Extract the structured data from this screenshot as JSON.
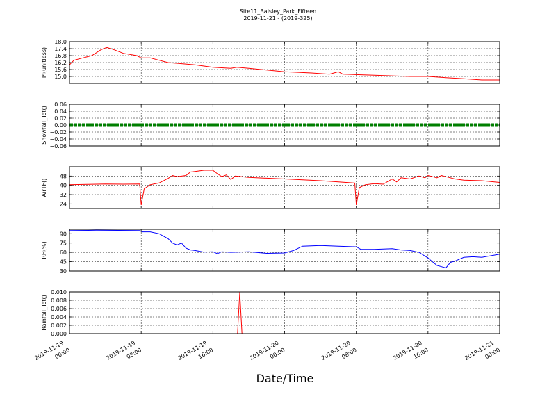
{
  "title_line1": "Site11_Baisley_Park_Fifteen",
  "title_line2": "2019-11-21 - (2019-325)",
  "xlabel": "Date/Time",
  "x_range": [
    "2019-11-19 00:00",
    "2019-11-21 00:00"
  ],
  "x_ticks": [
    {
      "t": "2019-11-19 00:00",
      "l1": "2019-11-19",
      "l2": "00:00"
    },
    {
      "t": "2019-11-19 08:00",
      "l1": "2019-11-19",
      "l2": "08:00"
    },
    {
      "t": "2019-11-19 16:00",
      "l1": "2019-11-19",
      "l2": "16:00"
    },
    {
      "t": "2019-11-20 00:00",
      "l1": "2019-11-20",
      "l2": "00:00"
    },
    {
      "t": "2019-11-20 08:00",
      "l1": "2019-11-20",
      "l2": "08:00"
    },
    {
      "t": "2019-11-20 16:00",
      "l1": "2019-11-20",
      "l2": "16:00"
    },
    {
      "t": "2019-11-21 00:00",
      "l1": "2019-11-21",
      "l2": "00:00"
    }
  ],
  "colors": {
    "pl": "#ff0000",
    "snow": "#007f00",
    "air": "#ff0000",
    "rh": "#0000ff",
    "rain": "#ff0000",
    "grid": "#000000"
  },
  "chart_data": [
    {
      "type": "line",
      "ylabel": "Pl(unitless)",
      "ylim": [
        14.4,
        18.0
      ],
      "yticks": [
        "15.0",
        "15.6",
        "16.2",
        "16.8",
        "17.4",
        "18.0"
      ],
      "grid": true,
      "series": [
        {
          "color": "#ff0000",
          "points": [
            [
              "2019-11-19 00:00",
              16.0
            ],
            [
              "2019-11-19 00:30",
              16.4
            ],
            [
              "2019-11-19 01:30",
              16.6
            ],
            [
              "2019-11-19 02:30",
              16.8
            ],
            [
              "2019-11-19 03:30",
              17.3
            ],
            [
              "2019-11-19 04:10",
              17.5
            ],
            [
              "2019-11-19 05:00",
              17.3
            ],
            [
              "2019-11-19 06:00",
              17.0
            ],
            [
              "2019-11-19 07:30",
              16.8
            ],
            [
              "2019-11-19 08:00",
              16.6
            ],
            [
              "2019-11-19 09:00",
              16.6
            ],
            [
              "2019-11-19 10:00",
              16.4
            ],
            [
              "2019-11-19 11:00",
              16.2
            ],
            [
              "2019-11-19 14:00",
              16.0
            ],
            [
              "2019-11-19 16:00",
              15.8
            ],
            [
              "2019-11-19 18:00",
              15.7
            ],
            [
              "2019-11-19 18:40",
              15.8
            ],
            [
              "2019-11-19 20:00",
              15.7
            ],
            [
              "2019-11-20 00:00",
              15.4
            ],
            [
              "2019-11-20 03:00",
              15.3
            ],
            [
              "2019-11-20 05:00",
              15.2
            ],
            [
              "2019-11-20 06:00",
              15.4
            ],
            [
              "2019-11-20 06:30",
              15.2
            ],
            [
              "2019-11-20 10:00",
              15.1
            ],
            [
              "2019-11-20 14:00",
              15.0
            ],
            [
              "2019-11-20 16:00",
              15.0
            ],
            [
              "2019-11-20 18:00",
              14.9
            ],
            [
              "2019-11-20 20:00",
              14.8
            ],
            [
              "2019-11-20 22:00",
              14.7
            ],
            [
              "2019-11-21 00:00",
              14.7
            ]
          ]
        }
      ]
    },
    {
      "type": "scatter",
      "ylabel": "Snowfall_Tot()",
      "ylim": [
        -0.06,
        0.06
      ],
      "yticks": [
        "−0.06",
        "−0.04",
        "−0.02",
        "0.00",
        "0.02",
        "0.04",
        "0.06"
      ],
      "grid": true,
      "series": [
        {
          "color": "#007f00",
          "points": [
            [
              "2019-11-19 00:00",
              0.0
            ],
            [
              "2019-11-21 00:00",
              0.0
            ]
          ]
        }
      ]
    },
    {
      "type": "line",
      "ylabel": "AirTF()",
      "ylim": [
        20,
        56
      ],
      "yticks": [
        "24",
        "32",
        "40",
        "48"
      ],
      "grid": true,
      "series": [
        {
          "color": "#ff0000",
          "points": [
            [
              "2019-11-19 00:00",
              40.5
            ],
            [
              "2019-11-19 02:00",
              40.8
            ],
            [
              "2019-11-19 04:00",
              41.2
            ],
            [
              "2019-11-19 06:00",
              41.0
            ],
            [
              "2019-11-19 07:50",
              41.2
            ],
            [
              "2019-11-19 08:00",
              23.0
            ],
            [
              "2019-11-19 08:20",
              37.0
            ],
            [
              "2019-11-19 09:00",
              40.5
            ],
            [
              "2019-11-19 10:00",
              42.0
            ],
            [
              "2019-11-19 11:00",
              46.0
            ],
            [
              "2019-11-19 11:30",
              48.5
            ],
            [
              "2019-11-19 12:00",
              47.5
            ],
            [
              "2019-11-19 13:00",
              48.5
            ],
            [
              "2019-11-19 13:30",
              51.5
            ],
            [
              "2019-11-19 14:00",
              52.0
            ],
            [
              "2019-11-19 15:00",
              53.0
            ],
            [
              "2019-11-19 16:00",
              53.0
            ],
            [
              "2019-11-19 16:30",
              50.0
            ],
            [
              "2019-11-19 17:00",
              47.5
            ],
            [
              "2019-11-19 17:30",
              49.0
            ],
            [
              "2019-11-19 18:00",
              45.0
            ],
            [
              "2019-11-19 18:30",
              48.0
            ],
            [
              "2019-11-19 20:00",
              46.8
            ],
            [
              "2019-11-20 00:00",
              45.5
            ],
            [
              "2019-11-20 04:00",
              44.0
            ],
            [
              "2019-11-20 07:50",
              42.0
            ],
            [
              "2019-11-20 08:00",
              23.0
            ],
            [
              "2019-11-20 08:20",
              38.0
            ],
            [
              "2019-11-20 09:00",
              40.5
            ],
            [
              "2019-11-20 10:00",
              41.5
            ],
            [
              "2019-11-20 11:00",
              41.0
            ],
            [
              "2019-11-20 12:00",
              45.5
            ],
            [
              "2019-11-20 12:30",
              43.0
            ],
            [
              "2019-11-20 13:00",
              46.5
            ],
            [
              "2019-11-20 14:00",
              45.5
            ],
            [
              "2019-11-20 15:00",
              48.0
            ],
            [
              "2019-11-20 15:40",
              46.5
            ],
            [
              "2019-11-20 16:00",
              48.5
            ],
            [
              "2019-11-20 17:00",
              46.5
            ],
            [
              "2019-11-20 17:30",
              48.5
            ],
            [
              "2019-11-20 18:00",
              47.5
            ],
            [
              "2019-11-20 19:00",
              45.5
            ],
            [
              "2019-11-20 20:00",
              44.5
            ],
            [
              "2019-11-20 22:00",
              44.0
            ],
            [
              "2019-11-21 00:00",
              42.5
            ]
          ]
        }
      ]
    },
    {
      "type": "line",
      "ylabel": "RH(%)",
      "ylim": [
        30,
        97
      ],
      "yticks": [
        "30",
        "45",
        "60",
        "75",
        "90"
      ],
      "grid": true,
      "series": [
        {
          "color": "#0000ff",
          "points": [
            [
              "2019-11-19 00:00",
              95.0
            ],
            [
              "2019-11-19 03:00",
              95.5
            ],
            [
              "2019-11-19 07:50",
              95.0
            ],
            [
              "2019-11-19 08:10",
              93.0
            ],
            [
              "2019-11-19 09:00",
              93.0
            ],
            [
              "2019-11-19 10:00",
              90.0
            ],
            [
              "2019-11-19 11:00",
              82.0
            ],
            [
              "2019-11-19 11:30",
              75.0
            ],
            [
              "2019-11-19 12:00",
              72.0
            ],
            [
              "2019-11-19 12:30",
              75.0
            ],
            [
              "2019-11-19 13:00",
              67.0
            ],
            [
              "2019-11-19 13:30",
              64.0
            ],
            [
              "2019-11-19 14:00",
              63.0
            ],
            [
              "2019-11-19 15:00",
              60.5
            ],
            [
              "2019-11-19 16:00",
              61.0
            ],
            [
              "2019-11-19 16:30",
              58.0
            ],
            [
              "2019-11-19 17:00",
              61.0
            ],
            [
              "2019-11-19 18:00",
              60.0
            ],
            [
              "2019-11-19 20:00",
              61.0
            ],
            [
              "2019-11-19 22:00",
              58.5
            ],
            [
              "2019-11-20 00:00",
              59.0
            ],
            [
              "2019-11-20 01:00",
              63.0
            ],
            [
              "2019-11-20 02:00",
              70.0
            ],
            [
              "2019-11-20 04:00",
              71.0
            ],
            [
              "2019-11-20 06:00",
              70.0
            ],
            [
              "2019-11-20 08:00",
              69.0
            ],
            [
              "2019-11-20 08:30",
              65.0
            ],
            [
              "2019-11-20 10:00",
              65.0
            ],
            [
              "2019-11-20 12:00",
              66.0
            ],
            [
              "2019-11-20 13:00",
              64.0
            ],
            [
              "2019-11-20 14:00",
              63.0
            ],
            [
              "2019-11-20 15:00",
              60.0
            ],
            [
              "2019-11-20 16:00",
              51.0
            ],
            [
              "2019-11-20 16:30",
              45.0
            ],
            [
              "2019-11-20 17:00",
              39.0
            ],
            [
              "2019-11-20 17:30",
              37.0
            ],
            [
              "2019-11-20 18:00",
              35.0
            ],
            [
              "2019-11-20 18:30",
              44.0
            ],
            [
              "2019-11-20 19:00",
              46.0
            ],
            [
              "2019-11-20 20:00",
              52.0
            ],
            [
              "2019-11-20 21:00",
              53.0
            ],
            [
              "2019-11-20 22:00",
              52.0
            ],
            [
              "2019-11-21 00:00",
              57.0
            ]
          ]
        }
      ]
    },
    {
      "type": "line",
      "ylabel": "Rainfall_Tot()",
      "ylim": [
        0.0,
        0.01
      ],
      "yticks": [
        "0.000",
        "0.002",
        "0.004",
        "0.006",
        "0.008",
        "0.010"
      ],
      "grid": true,
      "series": [
        {
          "color": "#ff0000",
          "points": [
            [
              "2019-11-19 00:00",
              0.0
            ],
            [
              "2019-11-19 18:45",
              0.0
            ],
            [
              "2019-11-19 19:00",
              0.01
            ],
            [
              "2019-11-19 19:15",
              0.0
            ],
            [
              "2019-11-21 00:00",
              0.0
            ]
          ]
        }
      ]
    }
  ]
}
